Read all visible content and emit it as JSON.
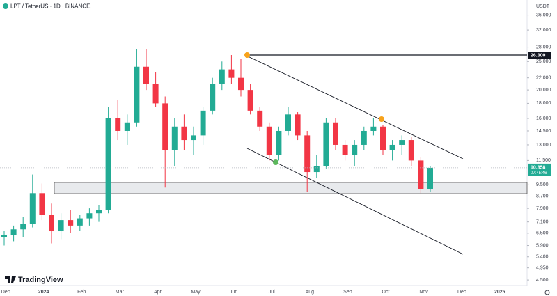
{
  "chart_data": {
    "type": "candlestick",
    "title": "LPT / TetherUS · 1D · BINANCE",
    "y_unit": "USDT",
    "categories": [
      null,
      null,
      null,
      null,
      null,
      null,
      null,
      null,
      null,
      null,
      null,
      null,
      null,
      null,
      null,
      null,
      null,
      null,
      null,
      null,
      null,
      null,
      null,
      null,
      null,
      null,
      null,
      null,
      null,
      null,
      null,
      null,
      null,
      null,
      null,
      null,
      null,
      null,
      null,
      null,
      null,
      null,
      null,
      null,
      null,
      null
    ],
    "open": [
      6.3,
      6.4,
      6.7,
      7.0,
      8.9,
      7.5,
      6.6,
      7.2,
      6.9,
      7.3,
      7.6,
      7.8,
      16.0,
      14.5,
      15.5,
      24.0,
      21.0,
      18.0,
      12.5,
      15.0,
      13.5,
      14.0,
      17.0,
      21.0,
      23.5,
      22.0,
      20.0,
      17.0,
      15.0,
      12.0,
      14.5,
      16.5,
      14.0,
      10.5,
      11.0,
      15.5,
      13.0,
      12.0,
      13.0,
      14.5,
      15.0,
      12.5,
      13.0,
      13.5,
      11.5,
      9.2
    ],
    "high": [
      6.6,
      6.9,
      7.4,
      10.3,
      9.6,
      8.2,
      7.6,
      7.8,
      7.5,
      7.9,
      8.1,
      17.5,
      18.5,
      16.5,
      27.5,
      27.5,
      23.0,
      19.0,
      16.0,
      16.5,
      15.0,
      17.5,
      22.0,
      25.0,
      26.3,
      25.5,
      21.0,
      17.5,
      15.5,
      15.0,
      17.5,
      16.8,
      14.5,
      12.0,
      16.0,
      16.0,
      13.5,
      13.5,
      15.0,
      16.0,
      15.2,
      13.5,
      14.0,
      13.8,
      11.8,
      11.0
    ],
    "low": [
      5.9,
      6.1,
      6.3,
      6.8,
      7.2,
      6.0,
      6.2,
      6.5,
      6.6,
      6.9,
      7.1,
      7.6,
      13.5,
      13.0,
      15.0,
      20.0,
      17.5,
      9.3,
      11.0,
      12.5,
      12.0,
      13.0,
      16.5,
      20.0,
      21.0,
      19.0,
      16.5,
      14.5,
      11.5,
      11.5,
      14.0,
      13.5,
      9.0,
      10.0,
      10.8,
      12.5,
      11.5,
      11.0,
      12.5,
      14.0,
      12.0,
      11.5,
      12.0,
      11.0,
      8.9,
      9.0
    ],
    "close": [
      6.4,
      6.7,
      7.0,
      8.9,
      7.5,
      6.6,
      7.2,
      6.9,
      7.3,
      7.6,
      7.8,
      16.0,
      14.5,
      15.5,
      24.0,
      21.0,
      18.0,
      12.5,
      15.0,
      13.5,
      14.0,
      17.0,
      21.0,
      23.5,
      22.0,
      20.0,
      17.0,
      15.0,
      12.0,
      14.5,
      16.5,
      14.0,
      10.5,
      11.0,
      15.5,
      13.0,
      12.0,
      13.0,
      14.5,
      15.0,
      12.5,
      13.0,
      13.5,
      11.5,
      9.2,
      10.858
    ],
    "up_color": "#22ab94",
    "down_color": "#f23645",
    "log_scale": true,
    "grid": false,
    "ylim": [
      4.31,
      40.5
    ],
    "yticks": [
      {
        "value": 36,
        "label": "36.000"
      },
      {
        "value": 32,
        "label": "32.000"
      },
      {
        "value": 28,
        "label": "28.000"
      },
      {
        "value": 25,
        "label": "25.000"
      },
      {
        "value": 22,
        "label": "22.000"
      },
      {
        "value": 20,
        "label": "20.000"
      },
      {
        "value": 18,
        "label": "18.000"
      },
      {
        "value": 16,
        "label": "16.000"
      },
      {
        "value": 14.5,
        "label": "14.500"
      },
      {
        "value": 13,
        "label": "13.000"
      },
      {
        "value": 11.5,
        "label": "11.500"
      },
      {
        "value": 9.5,
        "label": "9.500"
      },
      {
        "value": 8.7,
        "label": "8.700"
      },
      {
        "value": 7.9,
        "label": "7.900"
      },
      {
        "value": 7.1,
        "label": "7.100"
      },
      {
        "value": 6.5,
        "label": "6.500"
      },
      {
        "value": 5.9,
        "label": "5.900"
      },
      {
        "value": 5.4,
        "label": "5.400"
      },
      {
        "value": 4.95,
        "label": "4.950"
      },
      {
        "value": 4.5,
        "label": "4.500"
      }
    ],
    "x_labels": [
      "Dec",
      "2024",
      "Feb",
      "Mar",
      "Apr",
      "May",
      "Jun",
      "Jul",
      "Aug",
      "Sep",
      "Oct",
      "Nov",
      "Dec",
      "2025"
    ],
    "last_price": {
      "value": 10.858,
      "label": "10.858"
    },
    "countdown": "07:45:46",
    "resistance": {
      "value": 26.3,
      "label": "26.300"
    },
    "watermark": "TradingView"
  }
}
